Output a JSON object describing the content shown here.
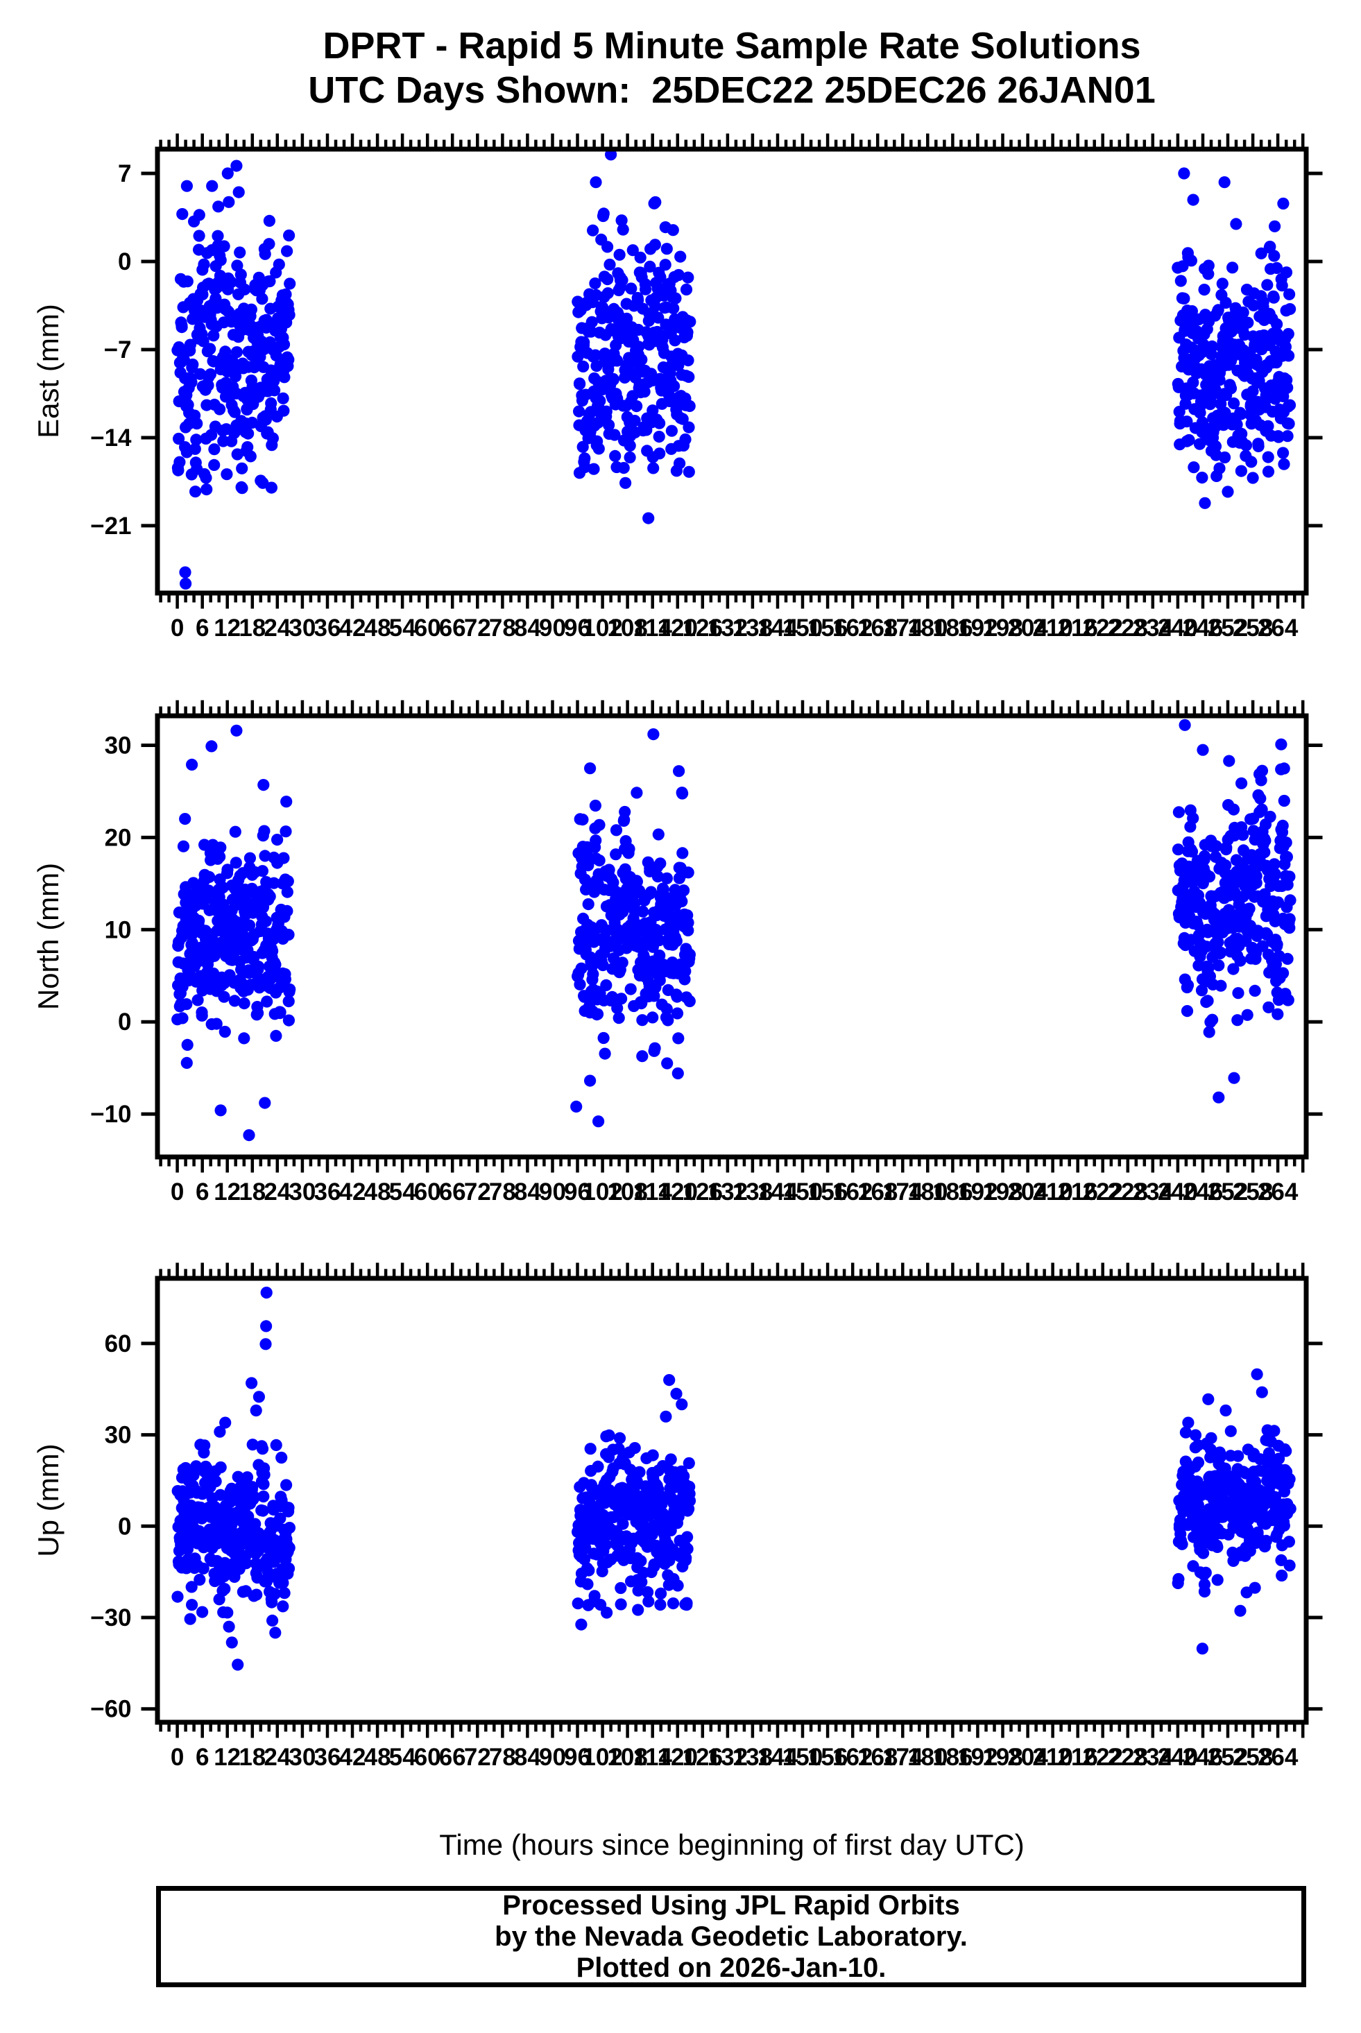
{
  "title": {
    "line1": "DPRT - Rapid 5 Minute Sample Rate Solutions",
    "line2": "UTC Days Shown:  25DEC22 25DEC26 26JAN01"
  },
  "caption": {
    "line1": "Processed Using JPL Rapid Orbits",
    "line2": "by the Nevada Geodetic Laboratory.",
    "line3": "Plotted on 2026-Jan-10."
  },
  "colors": {
    "dot": "#0000ff",
    "frame": "#000000",
    "text": "#000000",
    "background": "#ffffff"
  },
  "chart_data": {
    "type": "scatter",
    "title": "DPRT - Rapid 5 Minute Sample Rate Solutions",
    "subtitle": "UTC Days Shown:  25DEC22 25DEC26 26JAN01",
    "xlabel": "Time (hours since beginning of first day UTC)",
    "x_axis": {
      "xlim": [
        -4.76,
        270.8
      ],
      "tick_minor_step": 2,
      "tick_major_step": 6,
      "label_start": 0,
      "label_end": 264,
      "grid": false
    },
    "legend": "none",
    "marker": {
      "shape": "circle",
      "radius_px": 8.6
    },
    "panels": [
      {
        "id": "east",
        "ylabel": "East (mm)",
        "ylim": [
          -26.35,
          8.93
        ],
        "yticks": [
          7,
          0,
          -7,
          -14,
          -21
        ],
        "segments": [
          {
            "start": 0,
            "span": 27,
            "n": 324,
            "mean": -7.2,
            "std": 4.7,
            "min": -18.5,
            "max": 6.2,
            "seed": 11
          },
          {
            "start": 96,
            "span": 27,
            "n": 324,
            "mean": -7.0,
            "std": 4.7,
            "min": -16.8,
            "max": 5.2,
            "seed": 12
          },
          {
            "start": 240,
            "span": 27,
            "n": 324,
            "mean": -8.2,
            "std": 4.2,
            "min": -17.2,
            "max": 3.6,
            "seed": 13
          }
        ],
        "outliers": [
          [
            1.9,
            -24.7
          ],
          [
            2.0,
            -25.6
          ],
          [
            2.3,
            6.0
          ],
          [
            12.1,
            7.0
          ],
          [
            14.2,
            7.6
          ],
          [
            20.5,
            -17.6
          ],
          [
            6.5,
            -16.9
          ],
          [
            104.0,
            8.5
          ],
          [
            100.4,
            6.3
          ],
          [
            113.0,
            -20.4
          ],
          [
            107.5,
            -17.6
          ],
          [
            96.5,
            -16.8
          ],
          [
            118.5,
            -14.9
          ],
          [
            241.5,
            7.0
          ],
          [
            243.7,
            4.9
          ],
          [
            246.5,
            -19.2
          ],
          [
            252.0,
            -18.3
          ],
          [
            265.3,
            4.6
          ],
          [
            251.2,
            6.3
          ],
          [
            258.0,
            -17.2
          ]
        ]
      },
      {
        "id": "north",
        "ylabel": "North (mm)",
        "ylim": [
          -14.66,
          33.2
        ],
        "yticks": [
          30,
          20,
          10,
          0,
          -10
        ],
        "segments": [
          {
            "start": 0,
            "span": 27,
            "n": 324,
            "mean": 9.5,
            "std": 5.2,
            "min": -7.6,
            "max": 26.3,
            "seed": 21
          },
          {
            "start": 96,
            "span": 27,
            "n": 324,
            "mean": 10.2,
            "std": 5.2,
            "min": -6.6,
            "max": 26.6,
            "seed": 22
          },
          {
            "start": 240,
            "span": 27,
            "n": 324,
            "mean": 12.8,
            "std": 5.3,
            "min": -4.8,
            "max": 27.6,
            "seed": 23
          }
        ],
        "outliers": [
          [
            14.2,
            31.6
          ],
          [
            8.2,
            29.9
          ],
          [
            17.2,
            -12.3
          ],
          [
            10.4,
            -9.6
          ],
          [
            21.0,
            -8.8
          ],
          [
            3.5,
            27.9
          ],
          [
            114.2,
            31.2
          ],
          [
            99.0,
            27.5
          ],
          [
            95.7,
            -9.2
          ],
          [
            101.0,
            -10.8
          ],
          [
            117.5,
            -4.5
          ],
          [
            120.3,
            27.2
          ],
          [
            241.7,
            32.2
          ],
          [
            246.0,
            29.5
          ],
          [
            252.3,
            28.3
          ],
          [
            264.8,
            30.1
          ],
          [
            249.8,
            -8.2
          ],
          [
            253.5,
            -6.1
          ]
        ]
      },
      {
        "id": "up",
        "ylabel": "Up (mm)",
        "ylim": [
          -64.4,
          81.4
        ],
        "yticks": [
          60,
          30,
          0,
          -30,
          -60
        ],
        "segments": [
          {
            "start": 0,
            "span": 27,
            "n": 324,
            "mean": -2.0,
            "std": 12.5,
            "min": -29.0,
            "max": 27.0,
            "seed": 31
          },
          {
            "start": 96,
            "span": 27,
            "n": 324,
            "mean": 1.5,
            "std": 12.0,
            "min": -26.0,
            "max": 30.0,
            "seed": 32
          },
          {
            "start": 240,
            "span": 27,
            "n": 324,
            "mean": 7.0,
            "std": 10.5,
            "min": -22.0,
            "max": 32.0,
            "seed": 33
          }
        ],
        "outliers": [
          [
            21.4,
            76.7
          ],
          [
            21.3,
            65.7
          ],
          [
            21.2,
            59.8
          ],
          [
            17.8,
            47.0
          ],
          [
            19.6,
            42.5
          ],
          [
            18.9,
            38.0
          ],
          [
            10.2,
            31.0
          ],
          [
            11.5,
            34.0
          ],
          [
            14.5,
            -45.5
          ],
          [
            13.1,
            -38.2
          ],
          [
            12.4,
            -33.0
          ],
          [
            3.1,
            -30.5
          ],
          [
            23.5,
            -35.0
          ],
          [
            22.8,
            -31.0
          ],
          [
            118.0,
            48.0
          ],
          [
            119.7,
            43.5
          ],
          [
            121.0,
            40.0
          ],
          [
            117.2,
            36.0
          ],
          [
            96.9,
            -32.3
          ],
          [
            103.0,
            -28.4
          ],
          [
            101.5,
            -25.8
          ],
          [
            110.5,
            -27.5
          ],
          [
            247.3,
            41.7
          ],
          [
            259.0,
            49.9
          ],
          [
            251.5,
            38.0
          ],
          [
            260.2,
            44.0
          ],
          [
            242.5,
            34.0
          ],
          [
            245.9,
            -40.2
          ],
          [
            255.0,
            -27.8
          ]
        ]
      }
    ]
  }
}
